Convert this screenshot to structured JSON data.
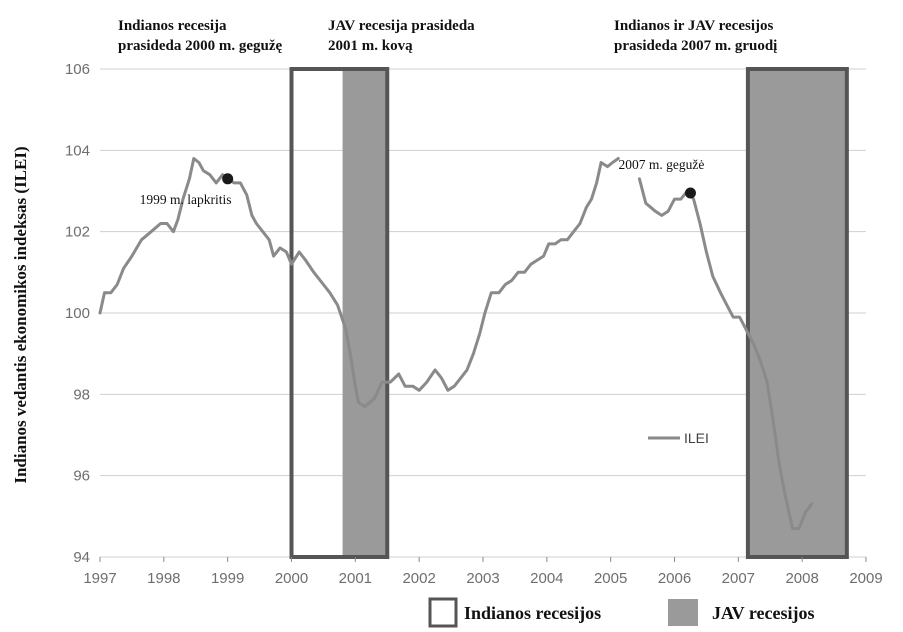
{
  "chart_data": {
    "type": "line",
    "ylabel": "Indianos vedantis ekonomikos indeksas (ILEI)",
    "xlabel": "",
    "xlim": [
      1997.0,
      2009.0
    ],
    "ylim": [
      94,
      106
    ],
    "x_ticks": [
      1997,
      1998,
      1999,
      2000,
      2001,
      2002,
      2003,
      2004,
      2005,
      2006,
      2007,
      2008,
      2009
    ],
    "x_tick_labels": [
      "1997",
      "1998",
      "1999",
      "2000",
      "2001",
      "2002",
      "2003",
      "2004",
      "2005",
      "2006",
      "2007",
      "2008",
      "2009"
    ],
    "y_ticks": [
      94,
      96,
      98,
      100,
      102,
      104,
      106
    ],
    "y_tick_labels": [
      "94",
      "96",
      "98",
      "100",
      "102",
      "104",
      "106"
    ],
    "grid": "horizontal",
    "line_color": "#8a8a8a",
    "series": [
      {
        "name": "ILEI",
        "segments": [
          [
            [
              1997.0,
              100.0
            ],
            [
              1997.07,
              100.5
            ],
            [
              1997.17,
              100.5
            ],
            [
              1997.27,
              100.7
            ],
            [
              1997.37,
              101.1
            ],
            [
              1997.5,
              101.4
            ],
            [
              1997.65,
              101.8
            ],
            [
              1997.8,
              102.0
            ],
            [
              1997.95,
              102.2
            ],
            [
              1998.05,
              102.2
            ],
            [
              1998.15,
              102.0
            ],
            [
              1998.22,
              102.3
            ],
            [
              1998.3,
              102.8
            ],
            [
              1998.4,
              103.3
            ],
            [
              1998.47,
              103.8
            ],
            [
              1998.55,
              103.7
            ],
            [
              1998.62,
              103.5
            ],
            [
              1998.72,
              103.4
            ],
            [
              1998.82,
              103.2
            ],
            [
              1998.92,
              103.4
            ],
            [
              1999.0,
              103.3
            ],
            [
              1999.1,
              103.2
            ],
            [
              1999.2,
              103.2
            ],
            [
              1999.3,
              102.9
            ],
            [
              1999.38,
              102.4
            ],
            [
              1999.45,
              102.2
            ],
            [
              1999.55,
              102.0
            ],
            [
              1999.65,
              101.8
            ],
            [
              1999.72,
              101.4
            ],
            [
              1999.82,
              101.6
            ],
            [
              1999.92,
              101.5
            ],
            [
              2000.0,
              101.2
            ],
            [
              2000.12,
              101.5
            ],
            [
              2000.22,
              101.3
            ],
            [
              2000.35,
              101.0
            ],
            [
              2000.5,
              100.7
            ],
            [
              2000.6,
              100.5
            ],
            [
              2000.72,
              100.2
            ],
            [
              2000.85,
              99.6
            ],
            [
              2000.93,
              98.9
            ],
            [
              2001.0,
              98.2
            ],
            [
              2001.05,
              97.8
            ],
            [
              2001.15,
              97.7
            ],
            [
              2001.3,
              97.9
            ],
            [
              2001.42,
              98.3
            ],
            [
              2001.55,
              98.3
            ],
            [
              2001.68,
              98.5
            ],
            [
              2001.78,
              98.2
            ],
            [
              2001.9,
              98.2
            ],
            [
              2002.0,
              98.1
            ],
            [
              2002.12,
              98.3
            ],
            [
              2002.25,
              98.6
            ],
            [
              2002.35,
              98.4
            ],
            [
              2002.45,
              98.1
            ],
            [
              2002.55,
              98.2
            ],
            [
              2002.65,
              98.4
            ],
            [
              2002.75,
              98.6
            ],
            [
              2002.85,
              99.0
            ],
            [
              2002.95,
              99.5
            ],
            [
              2003.03,
              100.0
            ],
            [
              2003.13,
              100.5
            ],
            [
              2003.25,
              100.5
            ],
            [
              2003.35,
              100.7
            ],
            [
              2003.45,
              100.8
            ],
            [
              2003.55,
              101.0
            ],
            [
              2003.65,
              101.0
            ],
            [
              2003.75,
              101.2
            ],
            [
              2003.85,
              101.3
            ],
            [
              2003.95,
              101.4
            ],
            [
              2004.03,
              101.7
            ],
            [
              2004.13,
              101.7
            ],
            [
              2004.22,
              101.8
            ],
            [
              2004.32,
              101.8
            ],
            [
              2004.42,
              102.0
            ],
            [
              2004.52,
              102.2
            ],
            [
              2004.62,
              102.6
            ],
            [
              2004.7,
              102.8
            ],
            [
              2004.78,
              103.2
            ],
            [
              2004.85,
              103.7
            ],
            [
              2004.95,
              103.6
            ],
            [
              2005.03,
              103.7
            ],
            [
              2005.12,
              103.8
            ]
          ],
          [
            [
              2005.45,
              103.3
            ],
            [
              2005.55,
              102.7
            ],
            [
              2005.7,
              102.5
            ],
            [
              2005.8,
              102.4
            ],
            [
              2005.9,
              102.5
            ],
            [
              2006.0,
              102.8
            ],
            [
              2006.1,
              102.8
            ],
            [
              2006.2,
              103.0
            ],
            [
              2006.3,
              102.8
            ],
            [
              2006.4,
              102.2
            ],
            [
              2006.5,
              101.5
            ],
            [
              2006.6,
              100.9
            ],
            [
              2006.72,
              100.5
            ],
            [
              2006.82,
              100.2
            ],
            [
              2006.92,
              99.9
            ],
            [
              2007.02,
              99.9
            ],
            [
              2007.12,
              99.6
            ],
            [
              2007.25,
              99.2
            ],
            [
              2007.35,
              98.8
            ],
            [
              2007.45,
              98.3
            ],
            [
              2007.55,
              97.3
            ],
            [
              2007.65,
              96.2
            ],
            [
              2007.75,
              95.4
            ],
            [
              2007.85,
              94.7
            ],
            [
              2007.95,
              94.7
            ],
            [
              2008.05,
              95.1
            ],
            [
              2008.15,
              95.3
            ]
          ]
        ]
      }
    ],
    "markers": [
      {
        "x": 1999.0,
        "y": 103.3,
        "label": "1999 m. lapkritis"
      },
      {
        "x": 2006.25,
        "y": 102.95,
        "label": "2007 m. gegužė"
      }
    ],
    "shaded_regions": [
      {
        "kind": "Indianos recesijos",
        "x_start": 2000.0,
        "x_end": 2001.5,
        "style": "outlined box"
      },
      {
        "kind": "JAV recesijos",
        "x_start": 2000.8,
        "x_end": 2001.5,
        "style": "gray fill"
      },
      {
        "kind": "Indianos recesijos",
        "x_start": 2007.15,
        "x_end": 2008.7,
        "style": "outlined box"
      },
      {
        "kind": "JAV recesijos",
        "x_start": 2007.15,
        "x_end": 2008.7,
        "style": "gray fill"
      }
    ],
    "annotations": [
      {
        "lines": [
          "Indianos recesija",
          "prasideda 2000 m. gegužę"
        ]
      },
      {
        "lines": [
          "JAV recesija prasideda",
          "2001 m. kovą"
        ]
      },
      {
        "lines": [
          "Indianos ir JAV recesijos",
          "prasideda 2007 m. gruodį"
        ]
      }
    ],
    "inner_legend": {
      "label": "ILEI",
      "placement": "lower-right"
    },
    "legend": {
      "placement": "bottom",
      "items": [
        {
          "label": "Indianos recesijos",
          "swatch": "outline",
          "color": "#555555"
        },
        {
          "label": "JAV recesijos",
          "swatch": "fill",
          "color": "#9a9a9a"
        }
      ]
    },
    "colors": {
      "recession_fill": "#9a9a9a",
      "recession_border": "#555555",
      "grid": "#cfcfcf"
    }
  }
}
